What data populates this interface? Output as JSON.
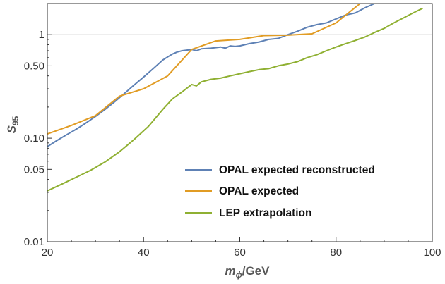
{
  "chart_data": {
    "type": "line",
    "xlabel_base": "m",
    "xlabel_sub": "ϕ",
    "xlabel_unit": "/GeV",
    "ylabel_base": "S",
    "ylabel_sub": "95",
    "xlim": [
      20,
      100
    ],
    "ylim": [
      0.01,
      2
    ],
    "yscale": "log",
    "grid": false,
    "reference_line": 1,
    "x_ticks": [
      20,
      40,
      60,
      80,
      100
    ],
    "x_tick_labels": [
      "20",
      "40",
      "60",
      "80",
      "100"
    ],
    "y_ticks": [
      0.01,
      0.05,
      0.1,
      0.5,
      1
    ],
    "y_tick_labels": [
      "0.01",
      "0.05",
      "0.10",
      "0.50",
      "1"
    ],
    "legend_position": "bottom-right",
    "series": [
      {
        "name": "OPAL expected reconstructed",
        "color": "#5e81b5",
        "x": [
          20,
          22,
          24,
          26,
          28,
          30,
          32,
          34,
          36,
          38,
          40,
          42,
          44,
          45,
          46,
          47,
          48,
          49,
          50,
          51,
          52,
          54,
          56,
          57,
          58,
          59,
          60,
          62,
          64,
          66,
          68,
          70,
          72,
          74,
          76,
          78,
          80,
          82,
          84,
          86,
          88
        ],
        "values": [
          0.083,
          0.095,
          0.108,
          0.122,
          0.14,
          0.162,
          0.19,
          0.225,
          0.27,
          0.325,
          0.39,
          0.47,
          0.57,
          0.61,
          0.65,
          0.68,
          0.7,
          0.71,
          0.72,
          0.7,
          0.73,
          0.74,
          0.76,
          0.74,
          0.78,
          0.77,
          0.78,
          0.82,
          0.85,
          0.9,
          0.92,
          1.0,
          1.08,
          1.18,
          1.25,
          1.3,
          1.42,
          1.55,
          1.62,
          1.82,
          2.0
        ]
      },
      {
        "name": "OPAL expected",
        "color": "#e19c24",
        "x": [
          20,
          25,
          30,
          35,
          40,
          45,
          50,
          55,
          60,
          65,
          70,
          75,
          80,
          85
        ],
        "values": [
          0.11,
          0.133,
          0.165,
          0.255,
          0.3,
          0.4,
          0.72,
          0.87,
          0.9,
          0.98,
          0.99,
          1.02,
          1.3,
          2.0
        ]
      },
      {
        "name": "LEP extrapolation",
        "color": "#8fb032",
        "x": [
          20,
          23,
          26,
          29,
          32,
          35,
          38,
          41,
          44,
          46,
          48,
          50,
          51,
          52,
          54,
          56,
          58,
          60,
          62,
          64,
          66,
          68,
          70,
          72,
          74,
          76,
          78,
          80,
          82,
          84,
          86,
          88,
          90,
          92,
          94,
          96,
          98
        ],
        "values": [
          0.031,
          0.036,
          0.042,
          0.049,
          0.059,
          0.074,
          0.097,
          0.13,
          0.19,
          0.24,
          0.28,
          0.33,
          0.32,
          0.35,
          0.37,
          0.38,
          0.4,
          0.42,
          0.44,
          0.46,
          0.47,
          0.5,
          0.52,
          0.55,
          0.6,
          0.64,
          0.7,
          0.76,
          0.82,
          0.88,
          0.95,
          1.05,
          1.15,
          1.3,
          1.45,
          1.62,
          1.8
        ]
      }
    ]
  }
}
